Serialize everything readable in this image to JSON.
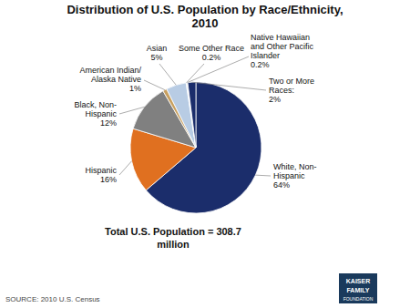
{
  "chart_data": {
    "type": "pie",
    "title": "Distribution of U.S. Population by Race/Ethnicity,\n2010",
    "subtitle": "Total U.S. Population = 308.7\nmillion",
    "source": "SOURCE: 2010 U.S. Census",
    "categories": [
      "White, Non-\nHispanic",
      "Hispanic",
      "Black, Non-\nHispanic",
      "American Indian/\nAlaska Native",
      "Asian",
      "Some Other Race",
      "Native Hawaiian\nand Other Pacific\nIslander",
      "Two or More\nRaces:"
    ],
    "values": [
      64,
      16,
      12,
      1,
      5,
      0.2,
      0.2,
      2
    ],
    "value_labels": [
      "64%",
      "16%",
      "12%",
      "1%",
      "5%",
      "0.2%",
      "0.2%",
      "2%"
    ],
    "colors": [
      "#1b2d6b",
      "#e07020",
      "#808080",
      "#c8a060",
      "#b8cce4",
      "#d9e8f5",
      "#c0d8ee",
      "#1b2d6b"
    ],
    "data_labels": true,
    "annotations": [
      "KAISER",
      "FAMILY",
      "FOUNDATION"
    ]
  }
}
